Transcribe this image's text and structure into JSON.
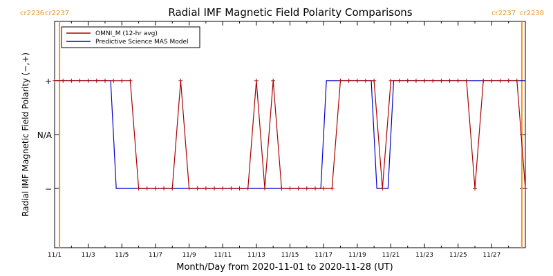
{
  "chart_data": {
    "type": "line",
    "title": "Radial IMF Magnetic Field Polarity Comparisons",
    "xlabel": "Month/Day from 2020-11-01 to 2020-11-28 (UT)",
    "ylabel": "Radial IMF Magnetic Field Polarity (−,+)",
    "xlim": [
      "2020-11-01",
      "2020-11-29"
    ],
    "x_ticks": [
      "11/1",
      "11/3",
      "11/5",
      "11/7",
      "11/9",
      "11/11",
      "11/13",
      "11/15",
      "11/17",
      "11/19",
      "11/21",
      "11/23",
      "11/25",
      "11/27"
    ],
    "y_ticks": [
      "+",
      "N/A",
      "−"
    ],
    "y_tick_values": [
      1,
      0,
      -1
    ],
    "ylim": [
      -2.1,
      2.1
    ],
    "carrington_markers": [
      {
        "date": "2020-11-01T07:00",
        "left_label": "cr2236",
        "right_label": "cr2237"
      },
      {
        "date": "2020-11-28T19:00",
        "left_label": "cr2237",
        "right_label": "cr2238"
      }
    ],
    "series": [
      {
        "name": "OMNI_M (12-hr avg)",
        "color": "#aa0000",
        "markers": true,
        "x": [
          "2020-11-01T00:00",
          "2020-11-01T12:00",
          "2020-11-02T00:00",
          "2020-11-02T12:00",
          "2020-11-03T00:00",
          "2020-11-03T12:00",
          "2020-11-04T00:00",
          "2020-11-04T12:00",
          "2020-11-05T00:00",
          "2020-11-05T12:00",
          "2020-11-06T00:00",
          "2020-11-06T12:00",
          "2020-11-07T00:00",
          "2020-11-07T12:00",
          "2020-11-08T00:00",
          "2020-11-08T12:00",
          "2020-11-09T00:00",
          "2020-11-09T12:00",
          "2020-11-10T00:00",
          "2020-11-10T12:00",
          "2020-11-11T00:00",
          "2020-11-11T12:00",
          "2020-11-12T00:00",
          "2020-11-12T12:00",
          "2020-11-13T00:00",
          "2020-11-13T12:00",
          "2020-11-14T00:00",
          "2020-11-14T12:00",
          "2020-11-15T00:00",
          "2020-11-15T12:00",
          "2020-11-16T00:00",
          "2020-11-16T12:00",
          "2020-11-17T00:00",
          "2020-11-17T12:00",
          "2020-11-18T00:00",
          "2020-11-18T12:00",
          "2020-11-19T00:00",
          "2020-11-19T12:00",
          "2020-11-20T00:00",
          "2020-11-20T12:00",
          "2020-11-21T00:00",
          "2020-11-21T12:00",
          "2020-11-22T00:00",
          "2020-11-22T12:00",
          "2020-11-23T00:00",
          "2020-11-23T12:00",
          "2020-11-24T00:00",
          "2020-11-24T12:00",
          "2020-11-25T00:00",
          "2020-11-25T12:00",
          "2020-11-26T00:00",
          "2020-11-26T12:00",
          "2020-11-27T00:00",
          "2020-11-27T12:00",
          "2020-11-28T00:00",
          "2020-11-28T12:00",
          "2020-11-29T00:00"
        ],
        "values": [
          1,
          1,
          1,
          1,
          1,
          1,
          1,
          1,
          1,
          1,
          -1,
          -1,
          -1,
          -1,
          -1,
          1,
          -1,
          -1,
          -1,
          -1,
          -1,
          -1,
          -1,
          -1,
          1,
          -1,
          1,
          -1,
          -1,
          -1,
          -1,
          -1,
          -1,
          -1,
          1,
          1,
          1,
          1,
          1,
          -1,
          1,
          1,
          1,
          1,
          1,
          1,
          1,
          1,
          1,
          1,
          -1,
          1,
          1,
          1,
          1,
          1,
          -1
        ]
      },
      {
        "name": "Predictive Science MAS Model",
        "color": "#0000cc",
        "markers": false,
        "x": [
          "2020-11-01T00:00",
          "2020-11-04T08:00",
          "2020-11-04T16:00",
          "2020-11-16T20:00",
          "2020-11-17T04:00",
          "2020-11-19T20:00",
          "2020-11-20T04:00",
          "2020-11-20T20:00",
          "2020-11-21T04:00",
          "2020-11-29T00:00"
        ],
        "values": [
          1,
          1,
          -1,
          -1,
          1,
          1,
          -1,
          -1,
          1,
          1
        ]
      }
    ],
    "legend": "top-left",
    "grid": false
  }
}
